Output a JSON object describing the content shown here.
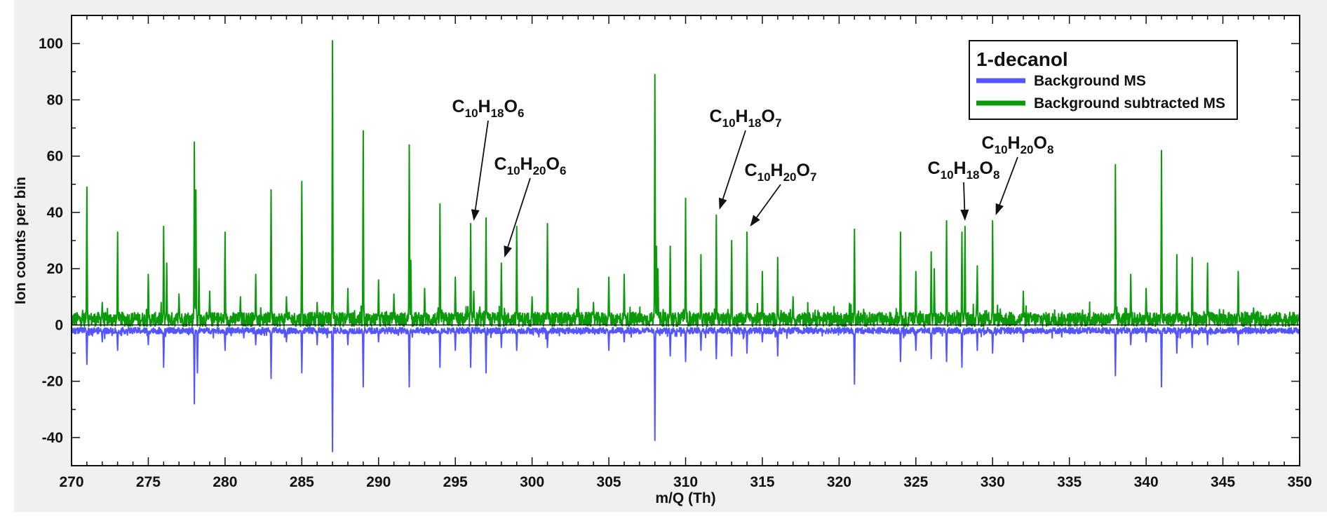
{
  "chart_data": {
    "type": "line",
    "title": "",
    "xlabel": "m/Q (Th)",
    "ylabel": "Ion counts per bin",
    "xlim": [
      270,
      350
    ],
    "ylim": [
      -50,
      110
    ],
    "xticks": [
      270,
      275,
      280,
      285,
      290,
      295,
      300,
      305,
      310,
      315,
      320,
      325,
      330,
      335,
      340,
      345,
      350
    ],
    "yticks": [
      -40,
      -20,
      0,
      20,
      40,
      60,
      80,
      100
    ],
    "grid": false,
    "legend": {
      "position": "top-right",
      "title": "1-decanol",
      "entries": [
        {
          "label": "Background MS",
          "color": "#5555ff"
        },
        {
          "label": "Background subtracted MS",
          "color": "#0a9a0a"
        }
      ]
    },
    "series": [
      {
        "name": "Background subtracted MS",
        "color": "#0a9a0a",
        "baseline": 2,
        "peaks": [
          [
            271,
            49
          ],
          [
            272,
            8
          ],
          [
            273,
            33
          ],
          [
            275,
            18
          ],
          [
            276,
            35
          ],
          [
            276.2,
            22
          ],
          [
            277,
            11
          ],
          [
            278,
            65
          ],
          [
            278.1,
            48
          ],
          [
            278.3,
            20
          ],
          [
            279,
            12
          ],
          [
            280,
            33
          ],
          [
            281,
            10
          ],
          [
            282,
            18
          ],
          [
            283,
            48
          ],
          [
            284,
            10
          ],
          [
            285,
            51
          ],
          [
            286,
            8
          ],
          [
            287,
            101
          ],
          [
            288,
            13
          ],
          [
            289,
            69
          ],
          [
            290,
            16
          ],
          [
            291,
            11
          ],
          [
            292,
            64
          ],
          [
            292.1,
            23
          ],
          [
            293,
            13
          ],
          [
            294,
            43
          ],
          [
            295,
            17
          ],
          [
            296,
            36
          ],
          [
            296.2,
            12
          ],
          [
            297,
            38
          ],
          [
            298,
            22
          ],
          [
            299,
            35
          ],
          [
            300,
            10
          ],
          [
            301,
            36
          ],
          [
            303,
            13
          ],
          [
            304,
            8
          ],
          [
            305,
            17
          ],
          [
            306,
            18
          ],
          [
            308,
            89
          ],
          [
            308.1,
            28
          ],
          [
            308.2,
            20
          ],
          [
            309,
            28
          ],
          [
            310,
            45
          ],
          [
            311,
            25
          ],
          [
            312,
            39
          ],
          [
            313,
            30
          ],
          [
            314,
            33
          ],
          [
            315,
            19
          ],
          [
            316,
            24
          ],
          [
            317,
            10
          ],
          [
            321,
            34
          ],
          [
            324,
            33
          ],
          [
            325,
            19
          ],
          [
            326,
            26
          ],
          [
            326.2,
            20
          ],
          [
            327,
            37
          ],
          [
            328,
            33
          ],
          [
            328.2,
            35
          ],
          [
            329,
            21
          ],
          [
            330,
            37
          ],
          [
            332,
            12
          ],
          [
            338,
            57
          ],
          [
            339,
            18
          ],
          [
            340,
            13
          ],
          [
            341,
            62
          ],
          [
            342,
            25
          ],
          [
            343,
            24
          ],
          [
            344,
            22
          ],
          [
            346,
            19
          ],
          [
            347,
            6
          ]
        ]
      },
      {
        "name": "Background MS",
        "color": "#5555ff",
        "baseline": -2,
        "peaks": [
          [
            271,
            -14
          ],
          [
            272,
            -6
          ],
          [
            273,
            -9
          ],
          [
            275,
            -7
          ],
          [
            276,
            -15
          ],
          [
            278,
            -28
          ],
          [
            278.2,
            -17
          ],
          [
            280,
            -9
          ],
          [
            282,
            -7
          ],
          [
            283,
            -19
          ],
          [
            284,
            -6
          ],
          [
            285,
            -17
          ],
          [
            286,
            -7
          ],
          [
            287,
            -45
          ],
          [
            288,
            -7
          ],
          [
            289,
            -22
          ],
          [
            290,
            -6
          ],
          [
            292,
            -22
          ],
          [
            294,
            -15
          ],
          [
            295,
            -9
          ],
          [
            296,
            -15
          ],
          [
            297,
            -17
          ],
          [
            298,
            -8
          ],
          [
            299,
            -9
          ],
          [
            301,
            -8
          ],
          [
            305,
            -9
          ],
          [
            306,
            -6
          ],
          [
            308,
            -41
          ],
          [
            309,
            -11
          ],
          [
            310,
            -13
          ],
          [
            311,
            -9
          ],
          [
            312,
            -12
          ],
          [
            313,
            -11
          ],
          [
            314,
            -10
          ],
          [
            315,
            -6
          ],
          [
            316,
            -11
          ],
          [
            321,
            -21
          ],
          [
            324,
            -13
          ],
          [
            325,
            -9
          ],
          [
            326,
            -12
          ],
          [
            327,
            -13
          ],
          [
            328,
            -15
          ],
          [
            329,
            -9
          ],
          [
            330,
            -10
          ],
          [
            332,
            -6
          ],
          [
            338,
            -18
          ],
          [
            339,
            -7
          ],
          [
            340,
            -6
          ],
          [
            341,
            -22
          ],
          [
            342,
            -10
          ],
          [
            343,
            -8
          ],
          [
            344,
            -7
          ],
          [
            346,
            -7
          ]
        ]
      }
    ],
    "annotations": [
      {
        "base": "C",
        "n1": "10",
        "mid": "H",
        "n2": "18",
        "end": "O",
        "n3": "6",
        "x": 296.2,
        "y": 37
      },
      {
        "base": "C",
        "n1": "10",
        "mid": "H",
        "n2": "20",
        "end": "O",
        "n3": "6",
        "x": 298.2,
        "y": 24
      },
      {
        "base": "C",
        "n1": "10",
        "mid": "H",
        "n2": "18",
        "end": "O",
        "n3": "7",
        "x": 312.2,
        "y": 41
      },
      {
        "base": "C",
        "n1": "10",
        "mid": "H",
        "n2": "20",
        "end": "O",
        "n3": "7",
        "x": 314.2,
        "y": 35
      },
      {
        "base": "C",
        "n1": "10",
        "mid": "H",
        "n2": "18",
        "end": "O",
        "n3": "8",
        "x": 328.2,
        "y": 37
      },
      {
        "base": "C",
        "n1": "10",
        "mid": "H",
        "n2": "20",
        "end": "O",
        "n3": "8",
        "x": 330.2,
        "y": 39
      }
    ]
  }
}
